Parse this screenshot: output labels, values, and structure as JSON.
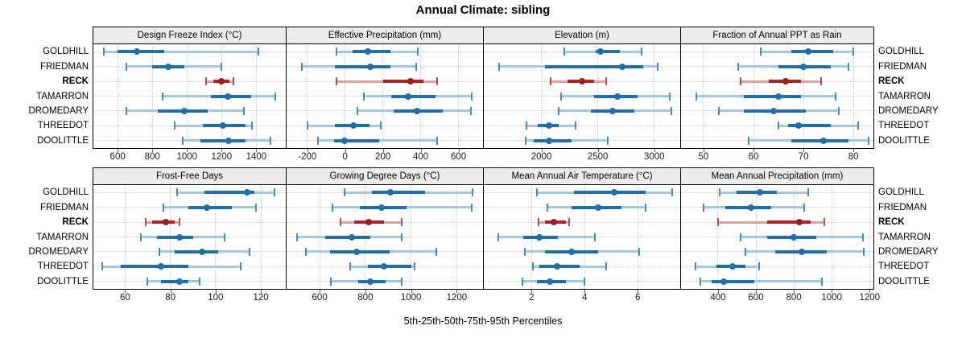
{
  "title": "Annual Climate: sibling",
  "caption": "5th-25th-50th-75th-95th Percentiles",
  "highlight_station": "RECK",
  "colors": {
    "blue": {
      "dot": "#1d6fad",
      "iqr": "#1d6fad",
      "band": "#a3c9e2",
      "cap": "#3f8fc5"
    },
    "red": {
      "dot": "#a21c1f",
      "iqr": "#b22222",
      "band": "#dda19c",
      "cap": "#c04a45"
    },
    "grid": "#c8c8c8",
    "header_bg": "#ececec",
    "border": "#000000",
    "tick_mark": "#606060"
  },
  "chart_data": {
    "type": "dot-interval (5th-25th-50th-75th-95th percentile whisker plot)",
    "legend_position": "none",
    "grid": "dotted",
    "categories": [
      "GOLDHILL",
      "FRIEDMAN",
      "RECK",
      "TAMARRON",
      "DROMEDARY",
      "THREEDOT",
      "DOOLITTLE"
    ],
    "panels": [
      {
        "title": "Design Freeze Index (°C)",
        "axis": {
          "min": 460,
          "max": 1570,
          "ticks": [
            600,
            800,
            1000,
            1200,
            1400
          ]
        },
        "series": [
          {
            "name": "GOLDHILL",
            "values": [
              520,
              600,
              710,
              870,
              1410
            ]
          },
          {
            "name": "FRIEDMAN",
            "values": [
              650,
              800,
              890,
              985,
              1200
            ]
          },
          {
            "name": "RECK",
            "values": [
              1110,
              1150,
              1200,
              1245,
              1270
            ]
          },
          {
            "name": "TAMARRON",
            "values": [
              860,
              1140,
              1235,
              1370,
              1510
            ]
          },
          {
            "name": "DROMEDARY",
            "values": [
              650,
              830,
              985,
              1120,
              1330
            ]
          },
          {
            "name": "THREEDOT",
            "values": [
              930,
              1090,
              1210,
              1340,
              1375
            ]
          },
          {
            "name": "DOOLITTLE",
            "values": [
              975,
              1080,
              1240,
              1340,
              1480
            ]
          }
        ]
      },
      {
        "title": "Effective Precipitation (mm)",
        "axis": {
          "min": -310,
          "max": 730,
          "ticks": [
            -200,
            0,
            200,
            400,
            600
          ]
        },
        "series": [
          {
            "name": "GOLDHILL",
            "values": [
              -45,
              40,
              120,
              240,
              385
            ]
          },
          {
            "name": "FRIEDMAN",
            "values": [
              -230,
              -55,
              135,
              240,
              375
            ]
          },
          {
            "name": "RECK",
            "values": [
              -45,
              200,
              345,
              415,
              485
            ]
          },
          {
            "name": "TAMARRON",
            "values": [
              100,
              245,
              335,
              480,
              670
            ]
          },
          {
            "name": "DROMEDARY",
            "values": [
              65,
              255,
              380,
              515,
              665
            ]
          },
          {
            "name": "THREEDOT",
            "values": [
              -200,
              -55,
              45,
              130,
              190
            ]
          },
          {
            "name": "DOOLITTLE",
            "values": [
              -145,
              -60,
              -5,
              180,
              485
            ]
          }
        ]
      },
      {
        "title": "Elevation (m)",
        "axis": {
          "min": 1490,
          "max": 3230,
          "ticks": [
            2000,
            2500,
            3000
          ]
        },
        "series": [
          {
            "name": "GOLDHILL",
            "values": [
              2200,
              2480,
              2525,
              2695,
              2890
            ]
          },
          {
            "name": "FRIEDMAN",
            "values": [
              1625,
              2035,
              2715,
              2905,
              3030
            ]
          },
          {
            "name": "RECK",
            "values": [
              2080,
              2235,
              2360,
              2470,
              2575
            ]
          },
          {
            "name": "TAMARRON",
            "values": [
              2175,
              2470,
              2675,
              2850,
              3135
            ]
          },
          {
            "name": "DROMEDARY",
            "values": [
              2150,
              2435,
              2630,
              2820,
              3155
            ]
          },
          {
            "name": "THREEDOT",
            "values": [
              1865,
              1965,
              2070,
              2150,
              2305
            ]
          },
          {
            "name": "DOOLITTLE",
            "values": [
              1860,
              1930,
              2070,
              2270,
              2590
            ]
          }
        ]
      },
      {
        "title": "Fraction of Annual PPT as Rain",
        "axis": {
          "min": 45.5,
          "max": 84,
          "ticks": [
            50,
            60,
            70,
            80
          ]
        },
        "series": [
          {
            "name": "GOLDHILL",
            "values": [
              61.5,
              67.5,
              71,
              76,
              80
            ]
          },
          {
            "name": "FRIEDMAN",
            "values": [
              57,
              65,
              70,
              75.5,
              79
            ]
          },
          {
            "name": "RECK",
            "values": [
              57.5,
              63,
              66.5,
              69.5,
              73.5
            ]
          },
          {
            "name": "TAMARRON",
            "values": [
              48.5,
              58,
              65,
              69.5,
              76.5
            ]
          },
          {
            "name": "DROMEDARY",
            "values": [
              53,
              58,
              64,
              70.5,
              77
            ]
          },
          {
            "name": "THREEDOT",
            "values": [
              65,
              67,
              69,
              75.5,
              81
            ]
          },
          {
            "name": "DOOLITTLE",
            "values": [
              59,
              67.5,
              74,
              79,
              83
            ]
          }
        ]
      },
      {
        "title": "Frost-Free Days",
        "axis": {
          "min": 46,
          "max": 131,
          "ticks": [
            60,
            80,
            100,
            120
          ]
        },
        "series": [
          {
            "name": "GOLDHILL",
            "values": [
              83,
              95,
              114,
              117,
              126
            ]
          },
          {
            "name": "FRIEDMAN",
            "values": [
              77,
              88,
              96,
              107,
              118
            ]
          },
          {
            "name": "RECK",
            "values": [
              69,
              72,
              78,
              82,
              84
            ]
          },
          {
            "name": "TAMARRON",
            "values": [
              67,
              74,
              84,
              90,
              104
            ]
          },
          {
            "name": "DROMEDARY",
            "values": [
              75,
              82,
              94,
              101,
              115
            ]
          },
          {
            "name": "THREEDOT",
            "values": [
              50,
              58,
              76,
              88,
              111
            ]
          },
          {
            "name": "DOOLITTLE",
            "values": [
              70,
              76,
              84,
              88,
              93
            ]
          }
        ]
      },
      {
        "title": "Growing Degree Days (°C)",
        "axis": {
          "min": 455,
          "max": 1315,
          "ticks": [
            600,
            800,
            1000,
            1200
          ]
        },
        "series": [
          {
            "name": "GOLDHILL",
            "values": [
              710,
              830,
              910,
              1060,
              1270
            ]
          },
          {
            "name": "FRIEDMAN",
            "values": [
              655,
              775,
              870,
              980,
              1265
            ]
          },
          {
            "name": "RECK",
            "values": [
              690,
              750,
              815,
              880,
              960
            ]
          },
          {
            "name": "TAMARRON",
            "values": [
              500,
              625,
              740,
              820,
              960
            ]
          },
          {
            "name": "DROMEDARY",
            "values": [
              540,
              645,
              760,
              905,
              1110
            ]
          },
          {
            "name": "THREEDOT",
            "values": [
              735,
              810,
              880,
              1000,
              1015
            ]
          },
          {
            "name": "DOOLITTLE",
            "values": [
              650,
              770,
              820,
              890,
              960
            ]
          }
        ]
      },
      {
        "title": "Mean Annual Air Temperature (°C)",
        "axis": {
          "min": 0.2,
          "max": 7.6,
          "ticks": [
            2,
            4,
            6
          ]
        },
        "series": [
          {
            "name": "GOLDHILL",
            "values": [
              2.2,
              3.6,
              5.1,
              6.3,
              7.3
            ]
          },
          {
            "name": "FRIEDMAN",
            "values": [
              2.6,
              3.5,
              4.5,
              5.4,
              6.3
            ]
          },
          {
            "name": "RECK",
            "values": [
              2.25,
              2.5,
              2.85,
              3.3,
              3.4
            ]
          },
          {
            "name": "TAMARRON",
            "values": [
              0.75,
              1.7,
              2.3,
              3.0,
              4.4
            ]
          },
          {
            "name": "DROMEDARY",
            "values": [
              1.75,
              2.5,
              3.5,
              4.5,
              6.05
            ]
          },
          {
            "name": "THREEDOT",
            "values": [
              2.05,
              2.3,
              2.95,
              3.8,
              4.8
            ]
          },
          {
            "name": "DOOLITTLE",
            "values": [
              1.65,
              2.2,
              2.7,
              3.3,
              4.0
            ]
          }
        ]
      },
      {
        "title": "Mean Annual Precipitation (mm)",
        "axis": {
          "min": 205,
          "max": 1220,
          "ticks": [
            400,
            600,
            800,
            1000,
            1200
          ]
        },
        "series": [
          {
            "name": "GOLDHILL",
            "values": [
              410,
              500,
              620,
              710,
              875
            ]
          },
          {
            "name": "FRIEDMAN",
            "values": [
              325,
              440,
              575,
              680,
              855
            ]
          },
          {
            "name": "RECK",
            "values": [
              400,
              660,
              830,
              890,
              960
            ]
          },
          {
            "name": "TAMARRON",
            "values": [
              520,
              660,
              800,
              920,
              1165
            ]
          },
          {
            "name": "DROMEDARY",
            "values": [
              545,
              700,
              840,
              975,
              1170
            ]
          },
          {
            "name": "THREEDOT",
            "values": [
              280,
              390,
              475,
              545,
              615
            ]
          },
          {
            "name": "DOOLITTLE",
            "values": [
              305,
              365,
              430,
              590,
              950
            ]
          }
        ]
      }
    ]
  }
}
